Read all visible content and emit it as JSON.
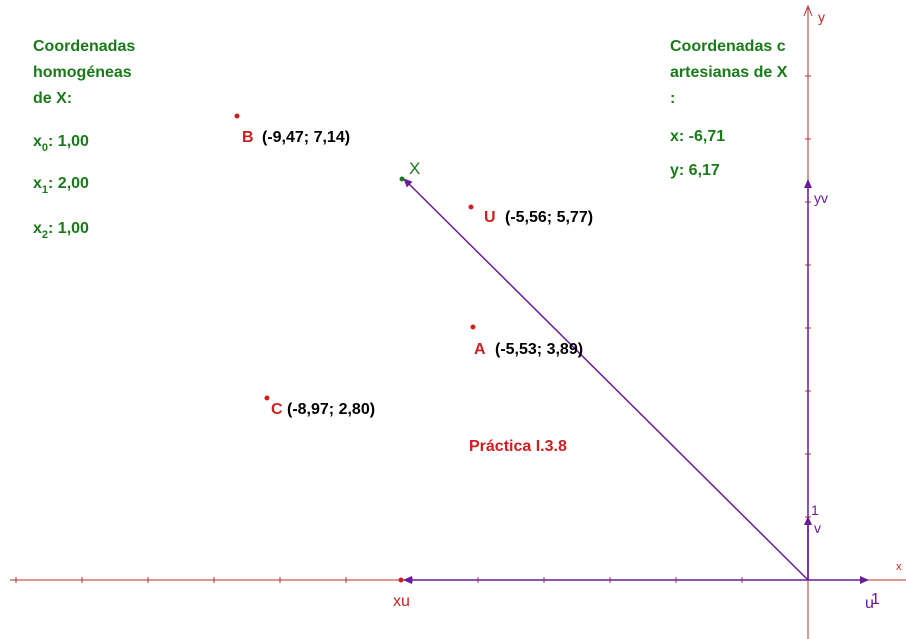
{
  "colors": {
    "axis": "#6a1b9a",
    "point": "#cc1f1f",
    "green": "#1a7a1a",
    "label": "#000000"
  },
  "homogeneous": {
    "title_lines": [
      "Coordenadas",
      "homogéneas",
      "de X:"
    ],
    "x0": {
      "base": "x",
      "sub": "0",
      "value": ": 1,00"
    },
    "x1": {
      "base": "x",
      "sub": "1",
      "value": ": 2,00"
    },
    "x2": {
      "base": "x",
      "sub": "2",
      "value": ": 1,00"
    }
  },
  "cartesian": {
    "title_lines": [
      "Coordenadas c",
      "artesianas de X",
      ":"
    ],
    "x": "x: -6,71",
    "y": "y: 6,17"
  },
  "points": {
    "B": {
      "name": "B",
      "coords": "(-9,47; 7,14)"
    },
    "U": {
      "name": "U",
      "coords": "(-5,56; 5,77)"
    },
    "A": {
      "name": "A",
      "coords": "(-5,53; 3,89)"
    },
    "C": {
      "name": "C",
      "coords": "(-8,97; 2,80)"
    },
    "X": {
      "name": "X"
    }
  },
  "title": "Práctica I.3.8",
  "axis_labels": {
    "y": "y",
    "x": "x",
    "yv": "yv",
    "one_v": "1",
    "v": "v",
    "one_u": "1",
    "u": "u",
    "xu": "xu"
  }
}
